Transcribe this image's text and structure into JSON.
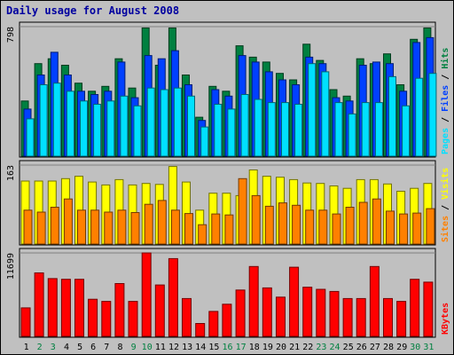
{
  "chart_data": {
    "type": "bar",
    "title": "Daily usage for August 2008",
    "categories": [
      "1",
      "2",
      "3",
      "4",
      "5",
      "6",
      "7",
      "8",
      "9",
      "10",
      "11",
      "12",
      "13",
      "14",
      "15",
      "16",
      "17",
      "18",
      "19",
      "20",
      "21",
      "22",
      "23",
      "24",
      "25",
      "26",
      "27",
      "28",
      "29",
      "30",
      "31"
    ],
    "weekend_days": [
      "2",
      "3",
      "9",
      "10",
      "16",
      "17",
      "23",
      "24",
      "30",
      "31"
    ],
    "colors": {
      "hits": "#008040",
      "files": "#0040ff",
      "pages": "#00e0ff",
      "visits": "#ffff00",
      "sites": "#ff8000",
      "kbytes": "#ff0000",
      "weekday_label": "#000000",
      "weekend_label": "#008040",
      "title": "#0000a0",
      "plot_bg": "#c0c0c0"
    },
    "panels": [
      {
        "id": "requests",
        "ymax_label": "798",
        "ylim": [
          0,
          798
        ],
        "right_label": [
          {
            "text": "Pages",
            "color": "#00e0ff"
          },
          {
            "text": " / ",
            "color": "#000000"
          },
          {
            "text": "Files",
            "color": "#0040ff"
          },
          {
            "text": " / ",
            "color": "#000000"
          },
          {
            "text": "Hits",
            "color": "#008040"
          }
        ],
        "series": [
          {
            "name": "Hits",
            "color": "#008040",
            "values": [
              340,
              570,
              600,
              560,
              450,
              400,
              430,
              600,
              420,
              790,
              560,
              790,
              500,
              240,
              430,
              400,
              680,
              610,
              580,
              510,
              470,
              690,
              590,
              410,
              370,
              600,
              570,
              630,
              440,
              720,
              790
            ]
          },
          {
            "name": "Files",
            "color": "#0040ff",
            "values": [
              290,
              500,
              640,
              500,
              400,
              380,
              400,
              580,
              360,
              620,
              600,
              650,
              440,
              220,
              410,
              370,
              620,
              580,
              520,
              470,
              440,
              610,
              570,
              360,
              340,
              560,
              580,
              570,
              400,
              700,
              730
            ]
          },
          {
            "name": "Pages",
            "color": "#00e0ff",
            "values": [
              230,
              440,
              450,
              400,
              340,
              320,
              340,
              370,
              310,
              420,
              410,
              420,
              370,
              180,
              320,
              290,
              380,
              350,
              330,
              330,
              320,
              570,
              520,
              330,
              260,
              330,
              330,
              490,
              310,
              480,
              510
            ]
          }
        ]
      },
      {
        "id": "visits",
        "ymax_label": "163",
        "ylim": [
          0,
          163
        ],
        "right_label": [
          {
            "text": "Sites",
            "color": "#ff8000"
          },
          {
            "text": " / ",
            "color": "#000000"
          },
          {
            "text": "Visits",
            "color": "#ffff00"
          }
        ],
        "series": [
          {
            "name": "Visits",
            "color": "#ffff00",
            "values": [
              130,
              130,
              130,
              135,
              140,
              128,
              122,
              133,
              122,
              125,
              123,
              160,
              128,
              70,
              105,
              105,
              100,
              153,
              140,
              138,
              133,
              126,
              125,
              120,
              115,
              133,
              133,
              124,
              109,
              115,
              125
            ]
          },
          {
            "name": "Sites",
            "color": "#ff8000",
            "values": [
              70,
              66,
              76,
              93,
              70,
              70,
              66,
              70,
              65,
              82,
              90,
              70,
              63,
              40,
              62,
              60,
              135,
              100,
              78,
              85,
              80,
              70,
              70,
              62,
              76,
              86,
              93,
              68,
              62,
              64,
              73
            ]
          }
        ]
      },
      {
        "id": "kbytes",
        "ymax_label": "11699",
        "ylim": [
          0,
          11699
        ],
        "right_label": [
          {
            "text": "KBytes",
            "color": "#ff0000"
          }
        ],
        "series": [
          {
            "name": "KBytes",
            "color": "#ff0000",
            "values": [
              4000,
              8900,
              8100,
              8000,
              8000,
              5200,
              4900,
              7400,
              4900,
              11700,
              7200,
              10900,
              5300,
              1800,
              3500,
              4500,
              6500,
              9800,
              6800,
              5500,
              9700,
              6900,
              6600,
              6300,
              5300,
              5300,
              9800,
              5300,
              4900,
              8000,
              7600
            ]
          }
        ]
      }
    ]
  }
}
